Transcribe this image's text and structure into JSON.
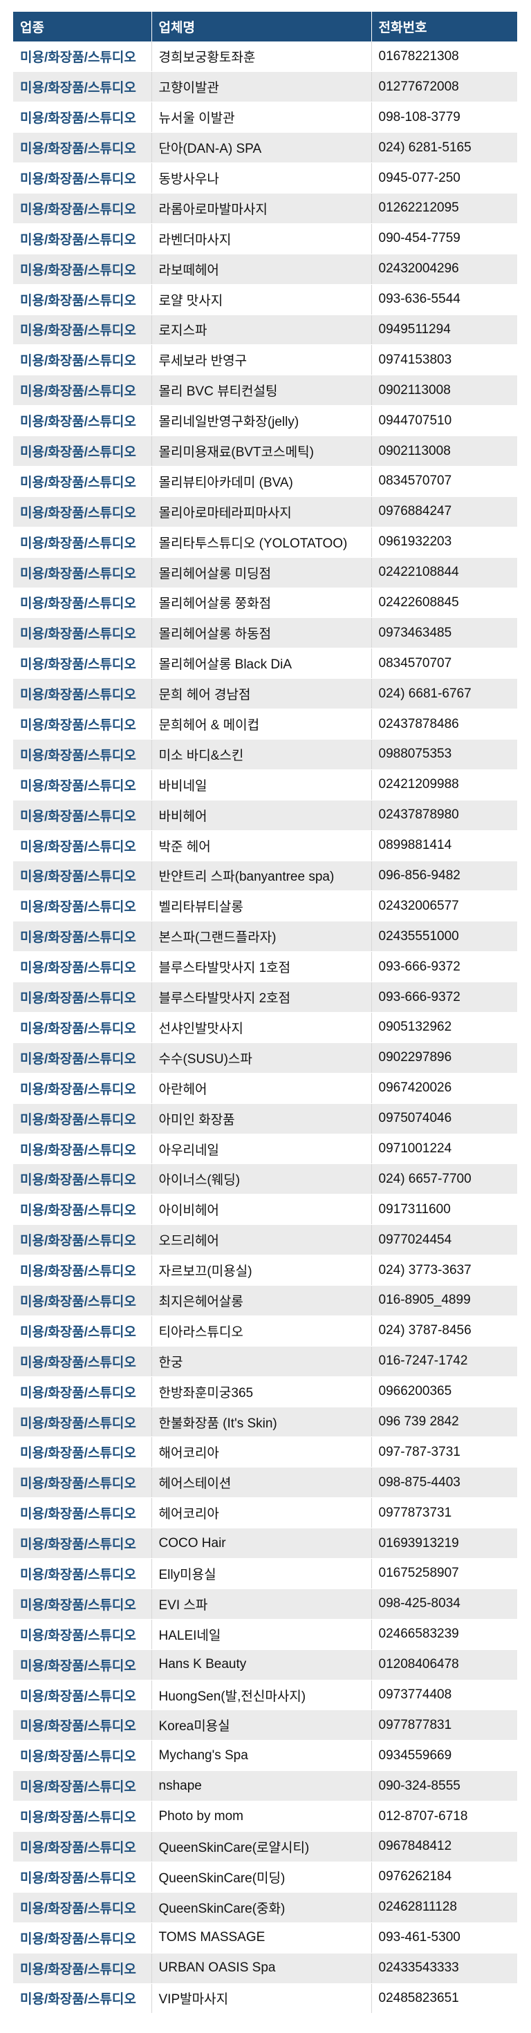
{
  "table": {
    "headers": [
      "업종",
      "업체명",
      "전화번호"
    ],
    "rows": [
      [
        "미용/화장품/스튜디오",
        "경희보궁황토좌훈",
        "01678221308"
      ],
      [
        "미용/화장품/스튜디오",
        "고향이발관",
        "01277672008"
      ],
      [
        "미용/화장품/스튜디오",
        "뉴서울 이발관",
        "098-108-3779"
      ],
      [
        "미용/화장품/스튜디오",
        "단아(DAN-A) SPA",
        "024) 6281-5165"
      ],
      [
        "미용/화장품/스튜디오",
        "동방사우나",
        "0945-077-250"
      ],
      [
        "미용/화장품/스튜디오",
        "라롬아로마발마사지",
        "01262212095"
      ],
      [
        "미용/화장품/스튜디오",
        "라벤더마사지",
        "090-454-7759"
      ],
      [
        "미용/화장품/스튜디오",
        "라보떼헤어",
        "02432004296"
      ],
      [
        "미용/화장품/스튜디오",
        "로얄 맛사지",
        "093-636-5544"
      ],
      [
        "미용/화장품/스튜디오",
        "로지스파",
        "0949511294"
      ],
      [
        "미용/화장품/스튜디오",
        "루세보라 반영구",
        "0974153803"
      ],
      [
        "미용/화장품/스튜디오",
        "몰리 BVC 뷰티컨설팅",
        "0902113008"
      ],
      [
        "미용/화장품/스튜디오",
        "몰리네일반영구화장(jelly)",
        "0944707510"
      ],
      [
        "미용/화장품/스튜디오",
        "몰리미용재료(BVT코스메틱)",
        "0902113008"
      ],
      [
        "미용/화장품/스튜디오",
        "몰리뷰티아카데미 (BVA)",
        "0834570707"
      ],
      [
        "미용/화장품/스튜디오",
        "몰리아로마테라피마사지",
        "0976884247"
      ],
      [
        "미용/화장품/스튜디오",
        "몰리타투스튜디오 (YOLOTATOO)",
        "0961932203"
      ],
      [
        "미용/화장품/스튜디오",
        "몰리헤어살롱 미딩점",
        "02422108844"
      ],
      [
        "미용/화장품/스튜디오",
        "몰리헤어살롱 쭝화점",
        "02422608845"
      ],
      [
        "미용/화장품/스튜디오",
        "몰리헤어살롱 하동점",
        "0973463485"
      ],
      [
        "미용/화장품/스튜디오",
        "몰리헤어살롱 Black DiA",
        "0834570707"
      ],
      [
        "미용/화장품/스튜디오",
        "문희 헤어 경남점",
        "024) 6681-6767"
      ],
      [
        "미용/화장품/스튜디오",
        "문희헤어 & 메이컵",
        "02437878486"
      ],
      [
        "미용/화장품/스튜디오",
        "미소 바디&스킨",
        "0988075353"
      ],
      [
        "미용/화장품/스튜디오",
        "바비네일",
        "02421209988"
      ],
      [
        "미용/화장품/스튜디오",
        "바비헤어",
        "02437878980"
      ],
      [
        "미용/화장품/스튜디오",
        "박준 헤어",
        "0899881414"
      ],
      [
        "미용/화장품/스튜디오",
        "반얀트리 스파(banyantree spa)",
        "096-856-9482"
      ],
      [
        "미용/화장품/스튜디오",
        "벨리타뷰티살롱",
        "02432006577"
      ],
      [
        "미용/화장품/스튜디오",
        "본스파(그랜드플라자)",
        "02435551000"
      ],
      [
        "미용/화장품/스튜디오",
        "블루스타발맛사지 1호점",
        "093-666-9372"
      ],
      [
        "미용/화장품/스튜디오",
        "블루스타발맛사지 2호점",
        "093-666-9372"
      ],
      [
        "미용/화장품/스튜디오",
        "선샤인발맛사지",
        "0905132962"
      ],
      [
        "미용/화장품/스튜디오",
        "수수(SUSU)스파",
        "0902297896"
      ],
      [
        "미용/화장품/스튜디오",
        "아란헤어",
        "0967420026"
      ],
      [
        "미용/화장품/스튜디오",
        "아미인 화장품",
        "0975074046"
      ],
      [
        "미용/화장품/스튜디오",
        "아우리네일",
        "0971001224"
      ],
      [
        "미용/화장품/스튜디오",
        "아이너스(웨딩)",
        "024) 6657-7700"
      ],
      [
        "미용/화장품/스튜디오",
        "아이비헤어",
        "0917311600"
      ],
      [
        "미용/화장품/스튜디오",
        "오드리헤어",
        "0977024454"
      ],
      [
        "미용/화장품/스튜디오",
        "자르보끄(미용실)",
        "024) 3773-3637"
      ],
      [
        "미용/화장품/스튜디오",
        "최지은헤어살롱",
        "016-8905_4899"
      ],
      [
        "미용/화장품/스튜디오",
        "티아라스튜디오",
        "024) 3787-8456"
      ],
      [
        "미용/화장품/스튜디오",
        "한궁",
        "016-7247-1742"
      ],
      [
        "미용/화장품/스튜디오",
        "한방좌훈미궁365",
        "0966200365"
      ],
      [
        "미용/화장품/스튜디오",
        "한불화장품 (It's Skin)",
        "096 739 2842"
      ],
      [
        "미용/화장품/스튜디오",
        "해어코리아",
        "097-787-3731"
      ],
      [
        "미용/화장품/스튜디오",
        "헤어스테이션",
        "098-875-4403"
      ],
      [
        "미용/화장품/스튜디오",
        "헤어코리아",
        "0977873731"
      ],
      [
        "미용/화장품/스튜디오",
        "COCO Hair",
        "01693913219"
      ],
      [
        "미용/화장품/스튜디오",
        "Elly미용실",
        "01675258907"
      ],
      [
        "미용/화장품/스튜디오",
        "EVI 스파",
        "098-425-8034"
      ],
      [
        "미용/화장품/스튜디오",
        "HALEI네일",
        "02466583239"
      ],
      [
        "미용/화장품/스튜디오",
        "Hans K Beauty",
        "01208406478"
      ],
      [
        "미용/화장품/스튜디오",
        "HuongSen(발,전신마사지)",
        "0973774408"
      ],
      [
        "미용/화장품/스튜디오",
        "Korea미용실",
        "0977877831"
      ],
      [
        "미용/화장품/스튜디오",
        "Mychang's Spa",
        "0934559669"
      ],
      [
        "미용/화장품/스튜디오",
        "nshape",
        "090-324-8555"
      ],
      [
        "미용/화장품/스튜디오",
        "Photo by mom",
        "012-8707-6718"
      ],
      [
        "미용/화장품/스튜디오",
        "QueenSkinCare(로얄시티)",
        "0967848412"
      ],
      [
        "미용/화장품/스튜디오",
        "QueenSkinCare(미딩)",
        "0976262184"
      ],
      [
        "미용/화장품/스튜디오",
        "QueenSkinCare(중화)",
        "02462811128"
      ],
      [
        "미용/화장품/스튜디오",
        "TOMS MASSAGE",
        "093-461-5300"
      ],
      [
        "미용/화장품/스튜디오",
        "URBAN OASIS Spa",
        "02433543333"
      ],
      [
        "미용/화장품/스튜디오",
        "VIP발마사지",
        "02485823651"
      ]
    ]
  }
}
